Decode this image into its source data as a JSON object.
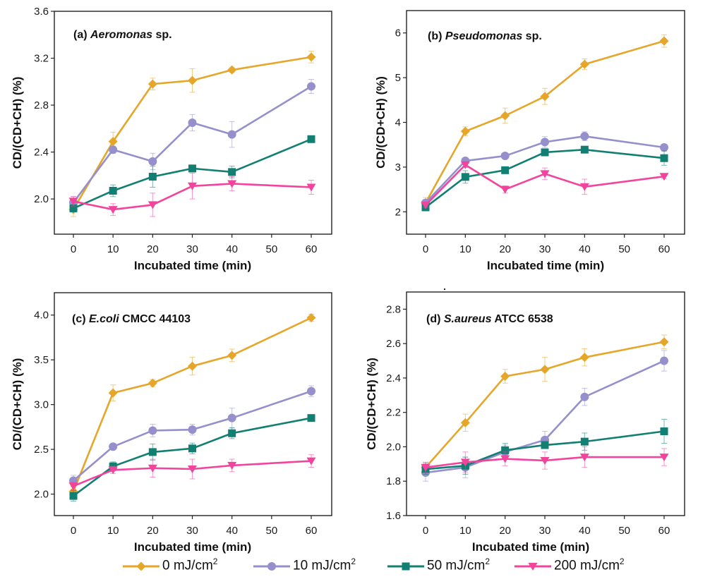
{
  "chart_data": [
    {
      "type": "line",
      "panel": "a",
      "title_prefix": "(a) ",
      "title_italic": "Aeromonas",
      "title_suffix": " sp.",
      "xlabel": "Incubated time (min)",
      "ylabel": "CD/(CD+CH) (%)",
      "x": [
        0,
        10,
        20,
        30,
        40,
        60
      ],
      "xticks": [
        0,
        10,
        20,
        30,
        40,
        50,
        60
      ],
      "xlim": [
        -5,
        65
      ],
      "ylim": [
        1.7,
        3.6
      ],
      "yticks": [
        2.0,
        2.4,
        2.8,
        3.2,
        3.6
      ],
      "ytick_labels": [
        "2.0",
        "2.4",
        "2.8",
        "3.2",
        "3.6"
      ],
      "series": [
        {
          "name": "0 mJ/cm2",
          "values": [
            1.91,
            2.49,
            2.98,
            3.01,
            3.1,
            3.21
          ],
          "errors": [
            0.06,
            0.08,
            0.05,
            0.1,
            0.02,
            0.05
          ]
        },
        {
          "name": "10 mJ/cm2",
          "values": [
            1.97,
            2.42,
            2.32,
            2.65,
            2.55,
            2.96
          ],
          "errors": [
            0.05,
            0.03,
            0.07,
            0.07,
            0.11,
            0.06
          ]
        },
        {
          "name": "50 mJ/cm2",
          "values": [
            1.92,
            2.07,
            2.19,
            2.26,
            2.23,
            2.51
          ],
          "errors": [
            0.03,
            0.05,
            0.09,
            0.03,
            0.05,
            0.02
          ]
        },
        {
          "name": "200 mJ/cm2",
          "values": [
            1.98,
            1.91,
            1.95,
            2.11,
            2.13,
            2.1
          ],
          "errors": [
            0.04,
            0.05,
            0.1,
            0.11,
            0.06,
            0.06
          ]
        }
      ]
    },
    {
      "type": "line",
      "panel": "b",
      "title_prefix": "(b) ",
      "title_italic": "Pseudomonas",
      "title_suffix": " sp.",
      "xlabel": "Incubated time (min)",
      "ylabel": "CD/(CD+CH) (%)",
      "x": [
        0,
        10,
        20,
        30,
        40,
        60
      ],
      "xticks": [
        0,
        10,
        20,
        30,
        40,
        50,
        60
      ],
      "xlim": [
        -5,
        65
      ],
      "ylim": [
        1.5,
        6.5
      ],
      "yticks": [
        2,
        3,
        4,
        5,
        6
      ],
      "ytick_labels": [
        "2",
        "3",
        "4",
        "5",
        "6"
      ],
      "series": [
        {
          "name": "0 mJ/cm2",
          "values": [
            2.2,
            3.8,
            4.15,
            4.58,
            5.3,
            5.82
          ],
          "errors": [
            0.12,
            0.1,
            0.17,
            0.18,
            0.12,
            0.14
          ]
        },
        {
          "name": "10 mJ/cm2",
          "values": [
            2.2,
            3.14,
            3.25,
            3.56,
            3.69,
            3.44
          ],
          "errors": [
            0.05,
            0.05,
            0.05,
            0.12,
            0.1,
            0.07
          ]
        },
        {
          "name": "50 mJ/cm2",
          "values": [
            2.1,
            2.78,
            2.93,
            3.33,
            3.39,
            3.2
          ],
          "errors": [
            0.05,
            0.14,
            0.05,
            0.08,
            0.05,
            0.16
          ]
        },
        {
          "name": "200 mJ/cm2",
          "values": [
            2.15,
            3.05,
            2.5,
            2.85,
            2.56,
            2.79
          ],
          "errors": [
            0.05,
            0.06,
            0.08,
            0.13,
            0.17,
            0.05
          ]
        }
      ]
    },
    {
      "type": "line",
      "panel": "c",
      "title_prefix": "(c) ",
      "title_italic": "E.coli",
      "title_suffix": " CMCC 44103",
      "xlabel": "Incubated time (min)",
      "ylabel": "CD/(CD+CH) (%)",
      "x": [
        0,
        10,
        20,
        30,
        40,
        60
      ],
      "xticks": [
        0,
        10,
        20,
        30,
        40,
        50,
        60
      ],
      "xlim": [
        -5,
        65
      ],
      "ylim": [
        1.76,
        4.25
      ],
      "yticks": [
        2.0,
        2.5,
        3.0,
        3.5,
        4.0
      ],
      "ytick_labels": [
        "2.0",
        "2.5",
        "3.0",
        "3.5",
        "4.0"
      ],
      "series": [
        {
          "name": "0 mJ/cm2",
          "values": [
            2.03,
            3.13,
            3.24,
            3.43,
            3.55,
            3.97
          ],
          "errors": [
            0.05,
            0.09,
            0.04,
            0.1,
            0.07,
            0.04
          ]
        },
        {
          "name": "10 mJ/cm2",
          "values": [
            2.15,
            2.53,
            2.71,
            2.72,
            2.85,
            3.15
          ],
          "errors": [
            0.06,
            0.03,
            0.07,
            0.06,
            0.11,
            0.06
          ]
        },
        {
          "name": "50 mJ/cm2",
          "values": [
            1.98,
            2.31,
            2.47,
            2.51,
            2.68,
            2.85
          ],
          "errors": [
            0.06,
            0.05,
            0.09,
            0.06,
            0.06,
            0.03
          ]
        },
        {
          "name": "200 mJ/cm2",
          "values": [
            2.09,
            2.27,
            2.29,
            2.28,
            2.32,
            2.37
          ],
          "errors": [
            0.04,
            0.04,
            0.1,
            0.11,
            0.07,
            0.07
          ]
        }
      ]
    },
    {
      "type": "line",
      "panel": "d",
      "title_prefix": "(d) ",
      "title_italic": "S.aureus",
      "title_suffix": " ATCC 6538",
      "xlabel": "Incubated time (min)",
      "ylabel": "CD/(CD+CH) (%)",
      "x": [
        0,
        10,
        20,
        30,
        40,
        60
      ],
      "xticks": [
        0,
        10,
        20,
        30,
        40,
        50,
        60
      ],
      "xlim": [
        -5,
        65
      ],
      "ylim": [
        1.6,
        2.9
      ],
      "yticks": [
        1.6,
        1.8,
        2.0,
        2.2,
        2.4,
        2.6,
        2.8
      ],
      "ytick_labels": [
        "1.6",
        "1.8",
        "2.0",
        "2.2",
        "2.4",
        "2.6",
        "2.8"
      ],
      "series": [
        {
          "name": "0 mJ/cm2",
          "values": [
            1.88,
            2.14,
            2.41,
            2.45,
            2.52,
            2.61
          ],
          "errors": [
            0.03,
            0.05,
            0.04,
            0.07,
            0.05,
            0.04
          ]
        },
        {
          "name": "10 mJ/cm2",
          "values": [
            1.85,
            1.88,
            1.97,
            2.04,
            2.29,
            2.5
          ],
          "errors": [
            0.05,
            0.06,
            0.04,
            0.05,
            0.05,
            0.06
          ]
        },
        {
          "name": "50 mJ/cm2",
          "values": [
            1.87,
            1.89,
            1.98,
            2.01,
            2.03,
            2.09
          ],
          "errors": [
            0.03,
            0.05,
            0.04,
            0.02,
            0.05,
            0.07
          ]
        },
        {
          "name": "200 mJ/cm2",
          "values": [
            1.88,
            1.91,
            1.93,
            1.92,
            1.94,
            1.94
          ],
          "errors": [
            0.03,
            0.06,
            0.04,
            0.05,
            0.06,
            0.05
          ]
        }
      ]
    }
  ],
  "legend": {
    "items": [
      {
        "label": "0 mJ/cm",
        "sup": "2",
        "color": "#E5A62A",
        "marker": "diamond"
      },
      {
        "label": "10 mJ/cm",
        "sup": "2",
        "color": "#9590CB",
        "marker": "circle"
      },
      {
        "label": "50 mJ/cm",
        "sup": "2",
        "color": "#127F73",
        "marker": "square"
      },
      {
        "label": "200 mJ/cm",
        "sup": "2",
        "color": "#F2449D",
        "marker": "triangle-down"
      }
    ]
  },
  "series_style": {
    "colors": [
      "#E5A62A",
      "#9590CB",
      "#127F73",
      "#F2449D"
    ],
    "markers": [
      "diamond",
      "circle",
      "square",
      "triangle-down"
    ]
  }
}
